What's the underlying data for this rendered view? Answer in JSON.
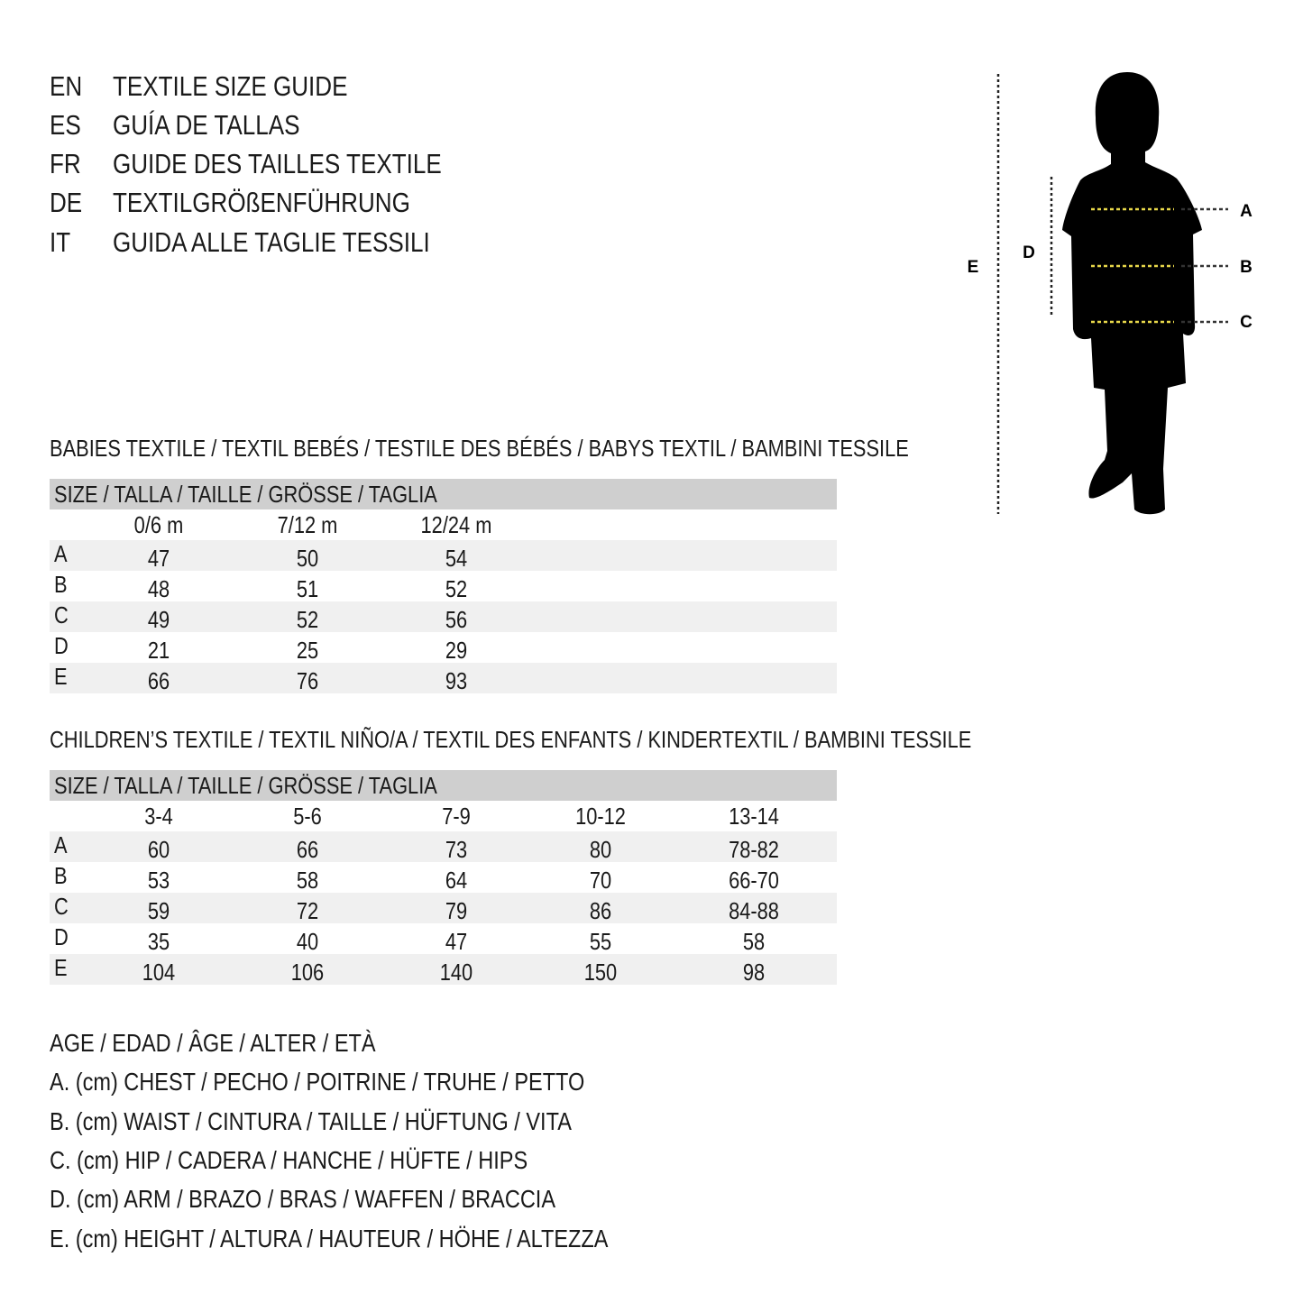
{
  "titles": [
    {
      "code": "EN",
      "text": "TEXTILE SIZE GUIDE"
    },
    {
      "code": "ES",
      "text": "GUÍA DE TALLAS"
    },
    {
      "code": "FR",
      "text": "GUIDE DES TAILLES TEXTILE"
    },
    {
      "code": "DE",
      "text": "TEXTILGRÖßENFÜHRUNG"
    },
    {
      "code": "IT",
      "text": "GUIDA ALLE TAGLIE TESSILI"
    }
  ],
  "figure": {
    "labels": {
      "A": "A",
      "B": "B",
      "C": "C",
      "D": "D",
      "E": "E"
    },
    "measure_line_color": "#e8d84a"
  },
  "babies": {
    "title": "BABIES TEXTILE / TEXTIL BEBÉS / TESTILE DES BÉBÉS / BABYS TEXTIL / BAMBINI TESSILE",
    "size_header": "SIZE / TALLA / TAILLE / GRÖSSE / TAGLIA",
    "columns": [
      "0/6 m",
      "7/12 m",
      "12/24 m"
    ],
    "rows": [
      {
        "label": "A",
        "values": [
          "47",
          "50",
          "54"
        ]
      },
      {
        "label": "B",
        "values": [
          "48",
          "51",
          "52"
        ]
      },
      {
        "label": "C",
        "values": [
          "49",
          "52",
          "56"
        ]
      },
      {
        "label": "D",
        "values": [
          "21",
          "25",
          "29"
        ]
      },
      {
        "label": "E",
        "values": [
          "66",
          "76",
          "93"
        ]
      }
    ]
  },
  "children": {
    "title": "CHILDREN’S TEXTILE / TEXTIL NIÑO/A / TEXTIL DES ENFANTS / KINDERTEXTIL / BAMBINI TESSILE",
    "size_header": "SIZE / TALLA / TAILLE / GRÖSSE / TAGLIA",
    "columns": [
      "3-4",
      "5-6",
      "7-9",
      "10-12",
      "13-14"
    ],
    "rows": [
      {
        "label": "A",
        "values": [
          "60",
          "66",
          "73",
          "80",
          "78-82"
        ]
      },
      {
        "label": "B",
        "values": [
          "53",
          "58",
          "64",
          "70",
          "66-70"
        ]
      },
      {
        "label": "C",
        "values": [
          "59",
          "72",
          "79",
          "86",
          "84-88"
        ]
      },
      {
        "label": "D",
        "values": [
          "35",
          "40",
          "47",
          "55",
          "58"
        ]
      },
      {
        "label": "E",
        "values": [
          "104",
          "106",
          "140",
          "150",
          "98"
        ]
      }
    ]
  },
  "legend": [
    "AGE / EDAD / ÂGE / ALTER / ETÀ",
    "A. (cm) CHEST / PECHO / POITRINE / TRUHE / PETTO",
    "B. (cm) WAIST / CINTURA / TAILLE / HÜFTUNG / VITA",
    "C. (cm) HIP / CADERA / HANCHE / HÜFTE / HIPS",
    "D. (cm) ARM / BRAZO / BRAS / WAFFEN / BRACCIA",
    "E. (cm) HEIGHT / ALTURA / HAUTEUR / HÖHE / ALTEZZA"
  ]
}
